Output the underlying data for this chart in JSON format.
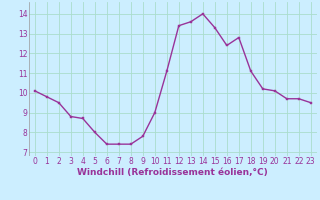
{
  "x": [
    0,
    1,
    2,
    3,
    4,
    5,
    6,
    7,
    8,
    9,
    10,
    11,
    12,
    13,
    14,
    15,
    16,
    17,
    18,
    19,
    20,
    21,
    22,
    23
  ],
  "y": [
    10.1,
    9.8,
    9.5,
    8.8,
    8.7,
    8.0,
    7.4,
    7.4,
    7.4,
    7.8,
    9.0,
    11.1,
    13.4,
    13.6,
    14.0,
    13.3,
    12.4,
    12.8,
    11.1,
    10.2,
    10.1,
    9.7,
    9.7,
    9.5
  ],
  "line_color": "#993399",
  "marker_color": "#993399",
  "bg_color": "#cceeff",
  "grid_color": "#aaddcc",
  "xlabel": "Windchill (Refroidissement éolien,°C)",
  "xlabel_color": "#993399",
  "yticks": [
    7,
    8,
    9,
    10,
    11,
    12,
    13,
    14
  ],
  "xticks": [
    0,
    1,
    2,
    3,
    4,
    5,
    6,
    7,
    8,
    9,
    10,
    11,
    12,
    13,
    14,
    15,
    16,
    17,
    18,
    19,
    20,
    21,
    22,
    23
  ],
  "ylim": [
    6.8,
    14.6
  ],
  "xlim": [
    -0.5,
    23.5
  ],
  "tick_color": "#993399",
  "tick_fontsize": 5.5,
  "xlabel_fontsize": 6.5,
  "line_width": 1.0,
  "marker_size": 2.0
}
